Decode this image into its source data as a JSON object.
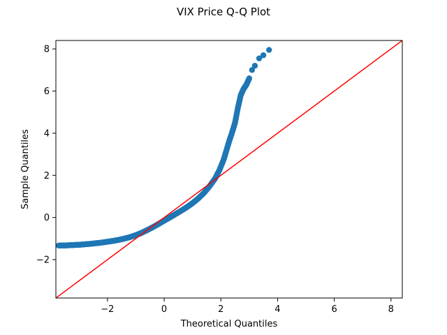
{
  "chart_data": {
    "type": "scatter",
    "title": "VIX Price Q-Q Plot",
    "xlabel": "Theoretical Quantiles",
    "ylabel": "Sample Quantiles",
    "xlim": [
      -3.82,
      8.4
    ],
    "ylim": [
      -3.82,
      8.4
    ],
    "xticks": [
      -2,
      0,
      2,
      4,
      6,
      8
    ],
    "yticks": [
      -2,
      0,
      2,
      4,
      6,
      8
    ],
    "xtick_labels": [
      "−2",
      "0",
      "2",
      "4",
      "6",
      "8"
    ],
    "ytick_labels": [
      "−2",
      "0",
      "2",
      "4",
      "6",
      "8"
    ],
    "grid": false,
    "legend": "none",
    "points_color": "#1f77b4",
    "line_color": "#ff0000",
    "reference_line": {
      "type": "45-degree",
      "slope": 1,
      "intercept": 0
    },
    "series": [
      {
        "values_xy": [
          [
            -3.72,
            -1.33
          ],
          [
            -3.55,
            -1.33
          ],
          [
            -3.4,
            -1.32
          ],
          [
            -3.25,
            -1.31
          ],
          [
            -3.1,
            -1.3
          ],
          [
            -2.95,
            -1.29
          ],
          [
            -2.8,
            -1.27
          ],
          [
            -2.6,
            -1.25
          ],
          [
            -2.4,
            -1.22
          ],
          [
            -2.2,
            -1.19
          ],
          [
            -2.0,
            -1.15
          ],
          [
            -1.8,
            -1.11
          ],
          [
            -1.6,
            -1.06
          ],
          [
            -1.4,
            -1.0
          ],
          [
            -1.2,
            -0.93
          ],
          [
            -1.0,
            -0.84
          ],
          [
            -0.8,
            -0.73
          ],
          [
            -0.6,
            -0.6
          ],
          [
            -0.4,
            -0.46
          ],
          [
            -0.2,
            -0.31
          ],
          [
            0.0,
            -0.15
          ],
          [
            0.2,
            0.0
          ],
          [
            0.4,
            0.16
          ],
          [
            0.6,
            0.32
          ],
          [
            0.8,
            0.49
          ],
          [
            1.0,
            0.68
          ],
          [
            1.2,
            0.9
          ],
          [
            1.4,
            1.16
          ],
          [
            1.6,
            1.48
          ],
          [
            1.8,
            1.86
          ],
          [
            1.95,
            2.25
          ],
          [
            2.1,
            2.75
          ],
          [
            2.2,
            3.2
          ],
          [
            2.3,
            3.65
          ],
          [
            2.4,
            4.05
          ],
          [
            2.5,
            4.5
          ],
          [
            2.6,
            5.2
          ],
          [
            2.7,
            5.8
          ],
          [
            2.8,
            6.1
          ],
          [
            2.9,
            6.3
          ],
          [
            3.0,
            6.6
          ],
          [
            3.1,
            7.0
          ],
          [
            3.2,
            7.2
          ],
          [
            3.35,
            7.55
          ],
          [
            3.5,
            7.7
          ],
          [
            3.7,
            7.95
          ]
        ]
      }
    ]
  }
}
